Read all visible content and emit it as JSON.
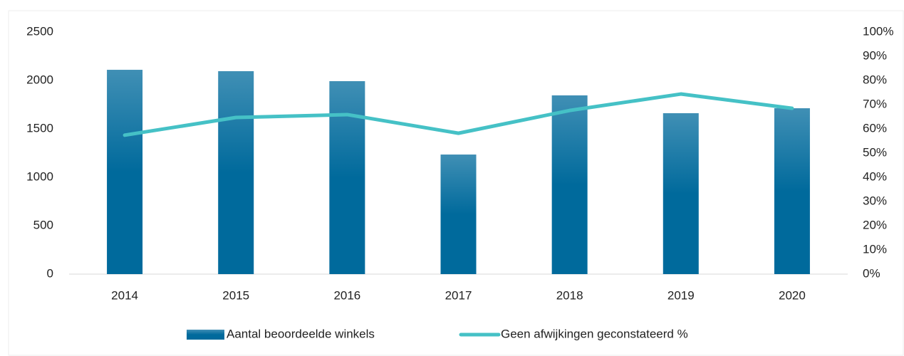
{
  "chart_data": {
    "type": "bar-line",
    "categories": [
      "2014",
      "2015",
      "2016",
      "2017",
      "2018",
      "2019",
      "2020"
    ],
    "series": [
      {
        "name": "Aantal beoordeelde winkels",
        "type": "bar",
        "color": "#006a9c",
        "values": [
          2110,
          2096,
          1993,
          1235,
          1846,
          1662,
          1713
        ]
      },
      {
        "name": "Geen afwijkingen geconstateerd %",
        "type": "line",
        "axis": "y2",
        "color": "#45c1c6",
        "values": [
          57.4,
          64.7,
          65.9,
          58.2,
          67.6,
          74.4,
          68.5
        ]
      }
    ],
    "ylim": [
      0,
      2500
    ],
    "yticks": [
      0,
      500,
      1000,
      1500,
      2000,
      2500
    ],
    "y2lim": [
      0,
      100
    ],
    "y2ticks": [
      {
        "value": 0,
        "label": "0%"
      },
      {
        "value": 10,
        "label": "10%"
      },
      {
        "value": 20,
        "label": "20%"
      },
      {
        "value": 30,
        "label": "30%"
      },
      {
        "value": 40,
        "label": "40%"
      },
      {
        "value": 50,
        "label": "50%"
      },
      {
        "value": 60,
        "label": "60%"
      },
      {
        "value": 70,
        "label": "70%"
      },
      {
        "value": 80,
        "label": "80%"
      },
      {
        "value": 90,
        "label": "90%"
      },
      {
        "value": 100,
        "label": "100%"
      }
    ],
    "legend": "bottom"
  }
}
